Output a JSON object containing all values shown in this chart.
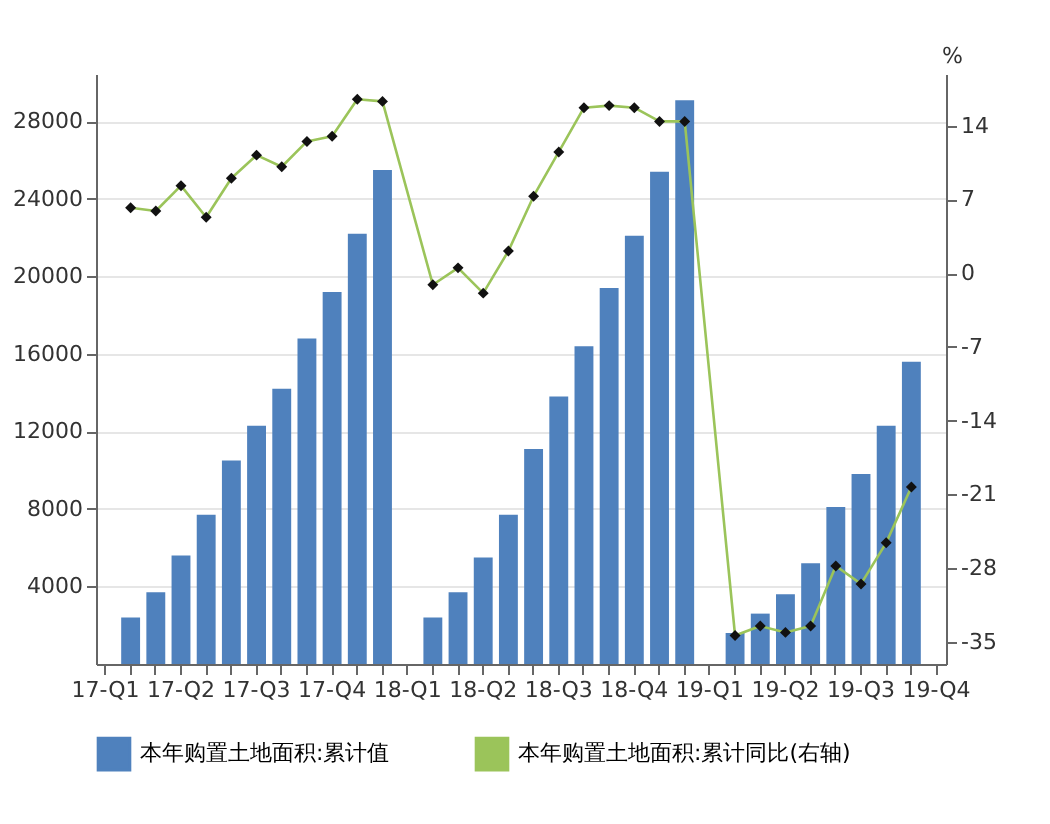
{
  "chart_data": {
    "type": "bar",
    "categories": [
      "17-Q1",
      null,
      null,
      "17-Q2",
      null,
      null,
      "17-Q3",
      null,
      null,
      "17-Q4",
      null,
      null,
      "18-Q1",
      null,
      null,
      "18-Q2",
      null,
      null,
      "18-Q3",
      null,
      null,
      "18-Q4",
      null,
      null,
      "19-Q1",
      null,
      null,
      "19-Q2",
      null,
      null,
      "19-Q3",
      null,
      null,
      "19-Q4"
    ],
    "ylim": [
      0,
      30450
    ],
    "yticks": [
      4000,
      8000,
      12000,
      16000,
      20000,
      24000,
      28000
    ],
    "y2lim": [
      -37.1,
      18.9
    ],
    "y2ticks": [
      -35,
      -28,
      -21,
      -14,
      -7,
      0,
      7,
      14
    ],
    "y2label": "%",
    "series": [
      {
        "name": "本年购置土地面积:累计值",
        "color": "#4f81bd",
        "values": [
          null,
          2400,
          3700,
          5600,
          7700,
          10500,
          12300,
          14200,
          16800,
          19200,
          22200,
          25500,
          null,
          2400,
          3700,
          5500,
          7700,
          11100,
          13800,
          16400,
          19400,
          22100,
          25400,
          29100,
          null,
          1600,
          2600,
          3600,
          5200,
          8100,
          9800,
          12300,
          15600,
          null
        ]
      },
      {
        "name": "本年购置土地面积:累计同比(右轴)",
        "type": "line",
        "axis": "y2",
        "color": "#9bc45a",
        "marker": "diamond",
        "line_style": "solid",
        "values": [
          null,
          6.2,
          5.9,
          8.3,
          5.3,
          9.0,
          11.2,
          10.1,
          12.5,
          13.0,
          16.5,
          16.3,
          null,
          -1.1,
          0.5,
          -1.9,
          2.1,
          7.3,
          11.5,
          15.7,
          15.9,
          15.7,
          14.4,
          14.4,
          null,
          -34.4,
          -33.5,
          -34.1,
          -33.5,
          -27.8,
          -29.5,
          -25.6,
          -20.3,
          null
        ]
      }
    ],
    "grid": "y",
    "legend": "bottom"
  }
}
